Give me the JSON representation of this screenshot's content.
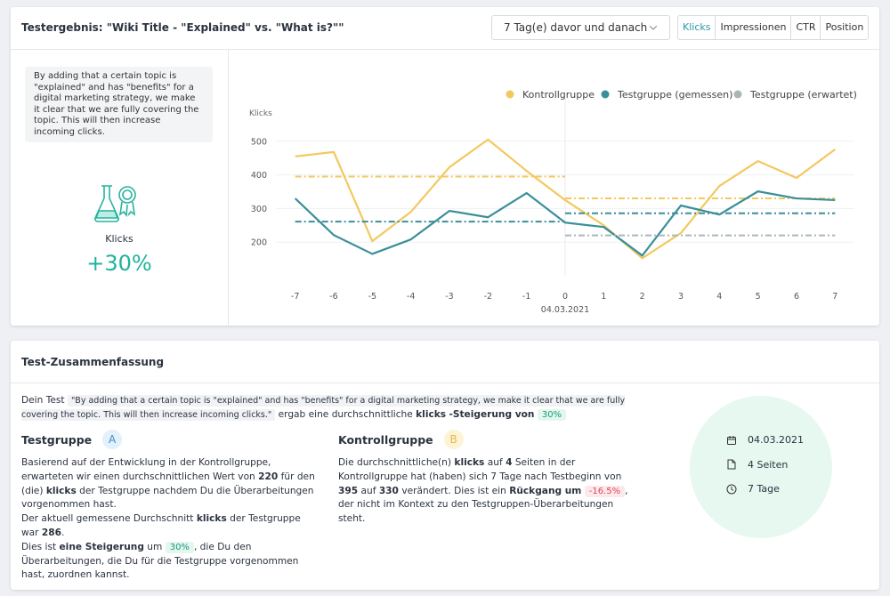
{
  "header": {
    "title": "Testergebnis: \"Wiki Title - \"Explained\" vs. \"What is?\"\"",
    "period": "7 Tag(e) davor und danach",
    "tabs": [
      "Klicks",
      "Impressionen",
      "CTR",
      "Position"
    ],
    "active_tab": 0
  },
  "hypothesis": "By adding that a certain topic is \"explained\" and has \"benefits\" for a digital marketing strategy, we make it clear that we are fully covering the topic. This will then increase incoming clicks.",
  "metric": {
    "label": "Klicks",
    "change": "+30%"
  },
  "chart_data": {
    "type": "line",
    "y_label": "Klicks",
    "x": [
      -7,
      -6,
      -5,
      -4,
      -3,
      -2,
      -1,
      0,
      1,
      2,
      3,
      4,
      5,
      6,
      7
    ],
    "xlim": [
      -7.5,
      7.5
    ],
    "xticks": [
      -7,
      -6,
      -5,
      -4,
      -3,
      -2,
      -1,
      0,
      1,
      2,
      3,
      4,
      5,
      6,
      7
    ],
    "x_annotation": "04.03.2021",
    "split_x": 0,
    "ylim": [
      100,
      600
    ],
    "yticks": [
      200,
      300,
      400,
      500
    ],
    "grid": true,
    "series": [
      {
        "name": "Kontrollgruppe",
        "color": "#f3c85e",
        "values": [
          455,
          468,
          203,
          290,
          423,
          505,
          412,
          325,
          250,
          152,
          227,
          367,
          441,
          391,
          476
        ],
        "mean_before": 395,
        "mean_after": 330
      },
      {
        "name": "Testgruppe (gemessen)",
        "color": "#3b8f99",
        "values": [
          330,
          221,
          165,
          208,
          293,
          274,
          346,
          258,
          245,
          160,
          309,
          282,
          351,
          330,
          325
        ],
        "mean_before": 261,
        "mean_after": 286
      },
      {
        "name": "Testgruppe (erwartet)",
        "color": "#a9b6b8",
        "mean_after": 220
      }
    ]
  },
  "summary": {
    "title": "Test-Zusammenfassung",
    "intro": [
      {
        "text": "Dein Test"
      },
      {
        "text": "\"By adding that a certain topic is \"explained\" and has \"benefits\" for a digital marketing strategy, we make it clear that we are fully covering the topic. This will then increase incoming clicks.\"",
        "style": "quote"
      },
      {
        "text": "ergab eine durchschnittliche"
      },
      {
        "text": "klicks",
        "style": "bold"
      },
      {
        "text": "-Steigerung von",
        "style": "bold"
      },
      {
        "text": "30%",
        "style": "tag"
      }
    ],
    "test_group": {
      "title": "Testgruppe",
      "badge": "A",
      "paragraphs": [
        [
          {
            "text": "Basierend auf der Entwicklung in der Kontrollgruppe, erwarteten wir einen durchschnittlichen Wert von"
          },
          {
            "text": "220",
            "style": "bold"
          },
          {
            "text": "für den (die)"
          },
          {
            "text": "klicks",
            "style": "bold"
          },
          {
            "text": "der Testgruppe nachdem Du die Überarbeitungen vorgenommen hast."
          }
        ],
        [
          {
            "text": "Der aktuell gemessene Durchschnitt"
          },
          {
            "text": "klicks",
            "style": "bold"
          },
          {
            "text": "der Testgruppe war"
          },
          {
            "text": "286",
            "style": "bold"
          },
          {
            "text": "."
          }
        ],
        [
          {
            "text": "Dies ist"
          },
          {
            "text": "eine Steigerung",
            "style": "bold"
          },
          {
            "text": "um"
          },
          {
            "text": "30%",
            "style": "tag"
          },
          {
            "text": ", die Du den Überarbeitungen, die Du für die Testgruppe vorgenommen hast, zuordnen kannst."
          }
        ]
      ]
    },
    "control_group": {
      "title": "Kontrollgruppe",
      "badge": "B",
      "paragraphs": [
        [
          {
            "text": "Die durchschnittliche(n)"
          },
          {
            "text": "klicks",
            "style": "bold"
          },
          {
            "text": "auf"
          },
          {
            "text": "4",
            "style": "bold"
          },
          {
            "text": "Seiten in der Kontrollgruppe hat (haben) sich 7 Tage nach Testbeginn von"
          },
          {
            "text": "395",
            "style": "bold"
          },
          {
            "text": "auf"
          },
          {
            "text": "330",
            "style": "bold"
          },
          {
            "text": "verändert. Dies ist ein"
          },
          {
            "text": "Rückgang um",
            "style": "bold"
          },
          {
            "text": "-16.5%",
            "style": "tag-red"
          },
          {
            "text": ", der nicht im Kontext zu den Testgruppen-Überarbeitungen steht."
          }
        ]
      ]
    },
    "info": [
      "04.03.2021",
      "4 Seiten",
      "7 Tage"
    ]
  }
}
